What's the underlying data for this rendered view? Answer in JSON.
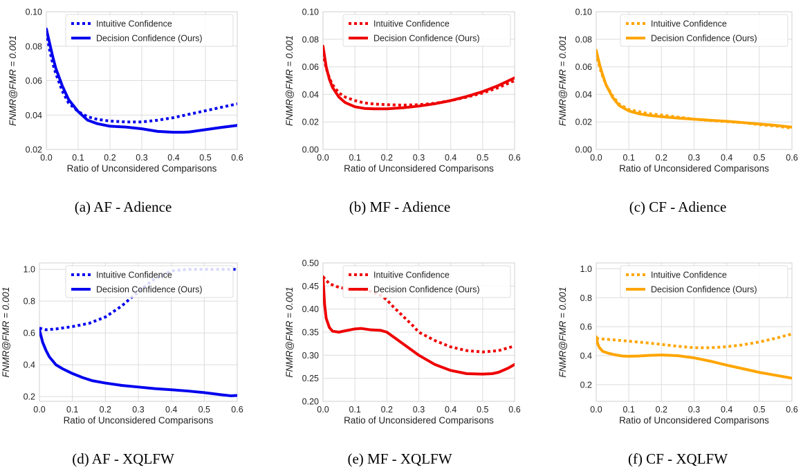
{
  "chart_data": [
    {
      "type": "line",
      "caption": "(a)  AF - Adience",
      "xlabel": "Ratio of Unconsidered Comparisons",
      "ylabel": "FNMR@FMR = 0.001",
      "xlim": [
        0,
        0.6
      ],
      "ylim": [
        0.02,
        0.1
      ],
      "xticks": [
        0.0,
        0.1,
        0.2,
        0.3,
        0.4,
        0.5,
        0.6
      ],
      "yticks": [
        0.02,
        0.04,
        0.06,
        0.08,
        0.1
      ],
      "xtick_labels": [
        "0.0",
        "0.1",
        "0.2",
        "0.3",
        "0.4",
        "0.5",
        "0.6"
      ],
      "ytick_labels": [
        "0.02",
        "0.04",
        "0.06",
        "0.08",
        "0.10"
      ],
      "color": "#0000ee",
      "grid": true,
      "legend": "top-right",
      "series": [
        {
          "name": "Intuitive Confidence",
          "style": "dotted",
          "x": [
            0,
            0.01,
            0.02,
            0.03,
            0.05,
            0.07,
            0.1,
            0.13,
            0.16,
            0.2,
            0.25,
            0.3,
            0.35,
            0.4,
            0.45,
            0.5,
            0.55,
            0.6
          ],
          "y": [
            0.088,
            0.078,
            0.07,
            0.064,
            0.054,
            0.047,
            0.042,
            0.039,
            0.0375,
            0.0365,
            0.036,
            0.036,
            0.037,
            0.0385,
            0.0405,
            0.0425,
            0.0445,
            0.0465
          ]
        },
        {
          "name": "Decision Confidence (Ours)",
          "style": "solid",
          "x": [
            0,
            0.01,
            0.02,
            0.03,
            0.05,
            0.07,
            0.1,
            0.13,
            0.16,
            0.2,
            0.25,
            0.3,
            0.35,
            0.4,
            0.43,
            0.45,
            0.5,
            0.55,
            0.6
          ],
          "y": [
            0.09,
            0.082,
            0.074,
            0.067,
            0.057,
            0.049,
            0.042,
            0.037,
            0.035,
            0.0335,
            0.033,
            0.032,
            0.0305,
            0.03,
            0.03,
            0.0302,
            0.0315,
            0.0328,
            0.034
          ]
        }
      ]
    },
    {
      "type": "line",
      "caption": "(b)  MF - Adience",
      "xlabel": "Ratio of Unconsidered Comparisons",
      "ylabel": "FNMR@FMR = 0.001",
      "xlim": [
        0,
        0.6
      ],
      "ylim": [
        0.0,
        0.1
      ],
      "xticks": [
        0.0,
        0.1,
        0.2,
        0.3,
        0.4,
        0.5,
        0.6
      ],
      "yticks": [
        0.0,
        0.02,
        0.04,
        0.06,
        0.08,
        0.1
      ],
      "xtick_labels": [
        "0.0",
        "0.1",
        "0.2",
        "0.3",
        "0.4",
        "0.5",
        "0.6"
      ],
      "ytick_labels": [
        "0.00",
        "0.02",
        "0.04",
        "0.06",
        "0.08",
        "0.10"
      ],
      "color": "#ee0000",
      "grid": true,
      "legend": "top-right",
      "series": [
        {
          "name": "Intuitive Confidence",
          "style": "dotted",
          "x": [
            0,
            0.01,
            0.02,
            0.03,
            0.05,
            0.07,
            0.1,
            0.13,
            0.16,
            0.2,
            0.25,
            0.3,
            0.35,
            0.4,
            0.45,
            0.5,
            0.55,
            0.6
          ],
          "y": [
            0.07,
            0.059,
            0.052,
            0.047,
            0.041,
            0.038,
            0.0355,
            0.0338,
            0.033,
            0.0325,
            0.0322,
            0.0325,
            0.0335,
            0.0355,
            0.038,
            0.041,
            0.045,
            0.05
          ]
        },
        {
          "name": "Decision Confidence (Ours)",
          "style": "solid",
          "x": [
            0,
            0.01,
            0.02,
            0.03,
            0.05,
            0.07,
            0.1,
            0.13,
            0.16,
            0.2,
            0.25,
            0.3,
            0.35,
            0.4,
            0.45,
            0.5,
            0.55,
            0.6
          ],
          "y": [
            0.075,
            0.06,
            0.051,
            0.045,
            0.038,
            0.034,
            0.031,
            0.0298,
            0.0295,
            0.0295,
            0.0303,
            0.0315,
            0.0332,
            0.0355,
            0.0385,
            0.042,
            0.0465,
            0.052
          ]
        }
      ]
    },
    {
      "type": "line",
      "caption": "(c)  CF - Adience",
      "xlabel": "Ratio of Unconsidered Comparisons",
      "ylabel": "FNMR@FMR = 0.001",
      "xlim": [
        0,
        0.6
      ],
      "ylim": [
        0.0,
        0.1
      ],
      "xticks": [
        0.0,
        0.1,
        0.2,
        0.3,
        0.4,
        0.5,
        0.6
      ],
      "yticks": [
        0.0,
        0.02,
        0.04,
        0.06,
        0.08,
        0.1
      ],
      "xtick_labels": [
        "0.0",
        "0.1",
        "0.2",
        "0.3",
        "0.4",
        "0.5",
        "0.6"
      ],
      "ytick_labels": [
        "0.00",
        "0.02",
        "0.04",
        "0.06",
        "0.08",
        "0.10"
      ],
      "color": "#ffa500",
      "grid": true,
      "legend": "top-right",
      "series": [
        {
          "name": "Intuitive Confidence",
          "style": "dotted",
          "x": [
            0,
            0.01,
            0.02,
            0.03,
            0.05,
            0.07,
            0.1,
            0.13,
            0.16,
            0.2,
            0.25,
            0.3,
            0.35,
            0.4,
            0.45,
            0.5,
            0.55,
            0.6
          ],
          "y": [
            0.07,
            0.06,
            0.053,
            0.047,
            0.039,
            0.033,
            0.029,
            0.0275,
            0.026,
            0.025,
            0.0235,
            0.022,
            0.021,
            0.0202,
            0.0195,
            0.018,
            0.017,
            0.0155
          ]
        },
        {
          "name": "Decision Confidence (Ours)",
          "style": "solid",
          "x": [
            0,
            0.01,
            0.02,
            0.03,
            0.05,
            0.07,
            0.1,
            0.13,
            0.16,
            0.2,
            0.25,
            0.3,
            0.35,
            0.4,
            0.45,
            0.5,
            0.55,
            0.6
          ],
          "y": [
            0.072,
            0.062,
            0.054,
            0.047,
            0.038,
            0.032,
            0.028,
            0.026,
            0.0248,
            0.0238,
            0.0228,
            0.022,
            0.0212,
            0.0205,
            0.0195,
            0.0185,
            0.0175,
            0.0162
          ]
        }
      ]
    },
    {
      "type": "line",
      "caption": "(d)  AF - XQLFW",
      "xlabel": "Ratio of Unconsidered Comparisons",
      "ylabel": "FNMR@FMR = 0.001",
      "xlim": [
        0,
        0.6
      ],
      "ylim": [
        0.17,
        1.04
      ],
      "xticks": [
        0.0,
        0.1,
        0.2,
        0.3,
        0.4,
        0.5,
        0.6
      ],
      "yticks": [
        0.2,
        0.4,
        0.6,
        0.8,
        1.0
      ],
      "xtick_labels": [
        "0.0",
        "0.1",
        "0.2",
        "0.3",
        "0.4",
        "0.5",
        "0.6"
      ],
      "ytick_labels": [
        "0.2",
        "0.4",
        "0.6",
        "0.8",
        "1.0"
      ],
      "color": "#0000ee",
      "grid": true,
      "legend": "top-right",
      "series": [
        {
          "name": "Intuitive Confidence",
          "style": "dotted",
          "x": [
            0,
            0.02,
            0.05,
            0.1,
            0.15,
            0.2,
            0.25,
            0.3,
            0.33,
            0.35,
            0.38,
            0.4,
            0.45,
            0.5,
            0.55,
            0.6
          ],
          "y": [
            0.63,
            0.62,
            0.625,
            0.64,
            0.66,
            0.7,
            0.77,
            0.86,
            0.91,
            0.94,
            0.97,
            0.99,
            1.0,
            1.0,
            1.0,
            1.0
          ]
        },
        {
          "name": "Decision Confidence (Ours)",
          "style": "solid",
          "x": [
            0,
            0.01,
            0.02,
            0.03,
            0.05,
            0.07,
            0.1,
            0.13,
            0.16,
            0.2,
            0.25,
            0.3,
            0.35,
            0.4,
            0.45,
            0.5,
            0.55,
            0.58,
            0.6
          ],
          "y": [
            0.62,
            0.54,
            0.49,
            0.45,
            0.4,
            0.375,
            0.345,
            0.32,
            0.3,
            0.285,
            0.27,
            0.26,
            0.25,
            0.243,
            0.235,
            0.225,
            0.212,
            0.205,
            0.207
          ]
        }
      ]
    },
    {
      "type": "line",
      "caption": "(e)  MF - XQLFW",
      "xlabel": "Ratio of Unconsidered Comparisons",
      "ylabel": "FNMR@FMR = 0.001",
      "xlim": [
        0,
        0.6
      ],
      "ylim": [
        0.2,
        0.5
      ],
      "xticks": [
        0.0,
        0.1,
        0.2,
        0.3,
        0.4,
        0.5,
        0.6
      ],
      "yticks": [
        0.2,
        0.25,
        0.3,
        0.35,
        0.4,
        0.45,
        0.5
      ],
      "xtick_labels": [
        "0.0",
        "0.1",
        "0.2",
        "0.3",
        "0.4",
        "0.5",
        "0.6"
      ],
      "ytick_labels": [
        "0.20",
        "0.25",
        "0.30",
        "0.35",
        "0.40",
        "0.45",
        "0.50"
      ],
      "color": "#ee0000",
      "grid": true,
      "legend": "top-right",
      "series": [
        {
          "name": "Intuitive Confidence",
          "style": "dotted",
          "x": [
            0,
            0.02,
            0.05,
            0.08,
            0.1,
            0.13,
            0.15,
            0.18,
            0.2,
            0.22,
            0.25,
            0.28,
            0.3,
            0.35,
            0.4,
            0.45,
            0.5,
            0.55,
            0.6
          ],
          "y": [
            0.47,
            0.455,
            0.447,
            0.443,
            0.442,
            0.441,
            0.438,
            0.43,
            0.42,
            0.405,
            0.385,
            0.365,
            0.35,
            0.332,
            0.318,
            0.31,
            0.307,
            0.31,
            0.32
          ]
        },
        {
          "name": "Decision Confidence (Ours)",
          "style": "solid",
          "x": [
            0,
            0.005,
            0.01,
            0.02,
            0.03,
            0.05,
            0.07,
            0.1,
            0.12,
            0.15,
            0.18,
            0.2,
            0.22,
            0.25,
            0.3,
            0.35,
            0.4,
            0.45,
            0.5,
            0.53,
            0.55,
            0.58,
            0.6
          ],
          "y": [
            0.47,
            0.41,
            0.38,
            0.36,
            0.352,
            0.35,
            0.353,
            0.357,
            0.358,
            0.355,
            0.354,
            0.35,
            0.34,
            0.325,
            0.3,
            0.28,
            0.267,
            0.26,
            0.259,
            0.26,
            0.263,
            0.272,
            0.28
          ]
        }
      ]
    },
    {
      "type": "line",
      "caption": "(f)  CF - XQLFW",
      "xlabel": "Ratio of Unconsidered Comparisons",
      "ylabel": "FNMR@FMR = 0.001",
      "xlim": [
        0,
        0.6
      ],
      "ylim": [
        0.085,
        1.04
      ],
      "xticks": [
        0.0,
        0.1,
        0.2,
        0.3,
        0.4,
        0.5,
        0.6
      ],
      "yticks": [
        0.2,
        0.4,
        0.6,
        0.8,
        1.0
      ],
      "xtick_labels": [
        "0.0",
        "0.1",
        "0.2",
        "0.3",
        "0.4",
        "0.5",
        "0.6"
      ],
      "ytick_labels": [
        "0.2",
        "0.4",
        "0.6",
        "0.8",
        "1.0"
      ],
      "color": "#ffa500",
      "grid": true,
      "legend": "top-right",
      "series": [
        {
          "name": "Intuitive Confidence",
          "style": "dotted",
          "x": [
            0,
            0.02,
            0.05,
            0.1,
            0.15,
            0.2,
            0.25,
            0.3,
            0.35,
            0.4,
            0.45,
            0.5,
            0.55,
            0.6
          ],
          "y": [
            0.52,
            0.515,
            0.51,
            0.5,
            0.49,
            0.478,
            0.465,
            0.455,
            0.455,
            0.462,
            0.475,
            0.495,
            0.52,
            0.55
          ]
        },
        {
          "name": "Decision Confidence (Ours)",
          "style": "solid",
          "x": [
            0,
            0.005,
            0.01,
            0.02,
            0.04,
            0.06,
            0.08,
            0.1,
            0.13,
            0.16,
            0.2,
            0.25,
            0.3,
            0.35,
            0.4,
            0.45,
            0.5,
            0.55,
            0.6
          ],
          "y": [
            0.53,
            0.48,
            0.455,
            0.43,
            0.415,
            0.405,
            0.398,
            0.396,
            0.398,
            0.402,
            0.405,
            0.4,
            0.385,
            0.362,
            0.335,
            0.31,
            0.285,
            0.265,
            0.245
          ]
        }
      ]
    }
  ]
}
